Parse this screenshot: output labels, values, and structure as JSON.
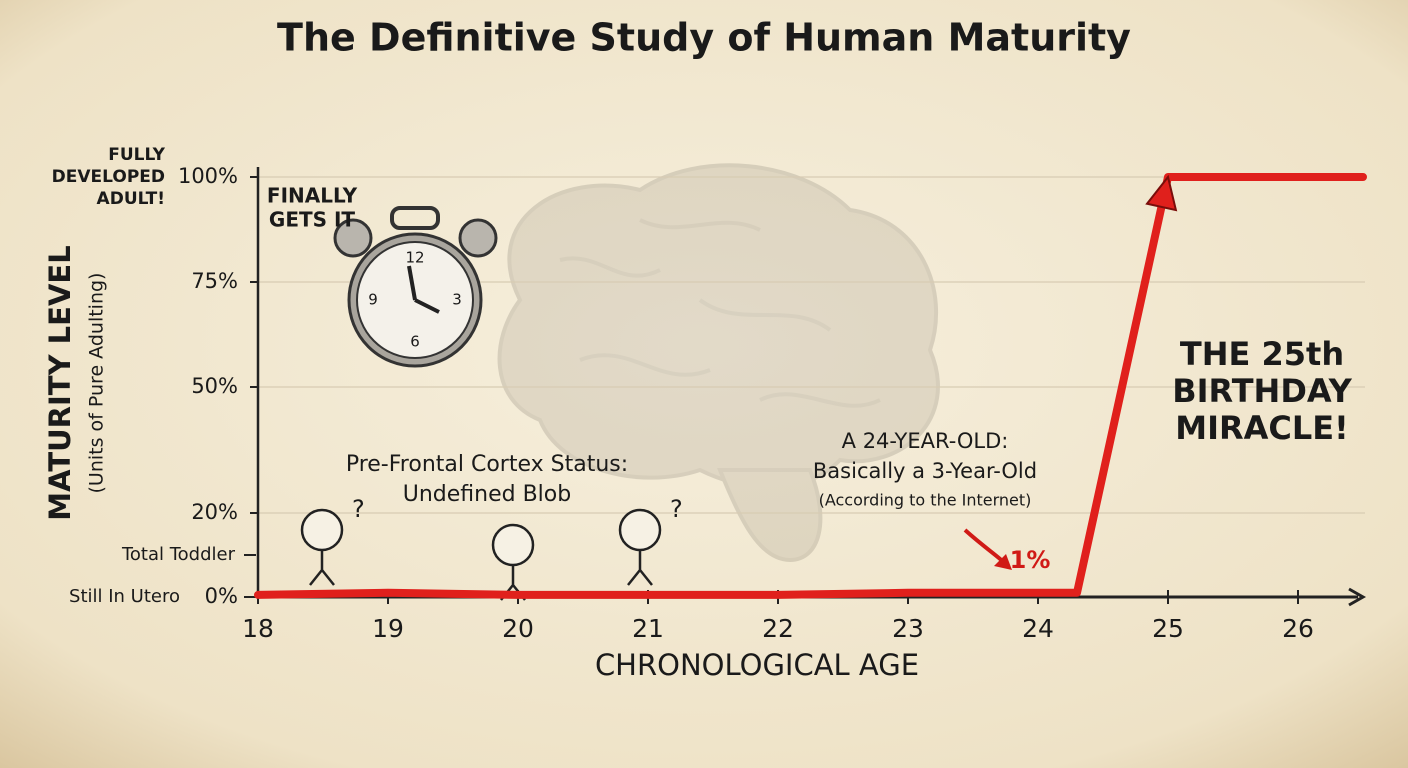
{
  "chart_data": {
    "type": "line",
    "title": "The Definitive Study of Human Maturity",
    "x_label": "CHRONOLOGICAL AGE",
    "y_label": "MATURITY LEVEL",
    "y_sublabel": "(Units of Pure Adulting)",
    "xlim": [
      18,
      26.5
    ],
    "xticks": [
      18,
      19,
      20,
      21,
      22,
      23,
      24,
      25,
      26
    ],
    "ylim": [
      0,
      100
    ],
    "yticks": [
      {
        "value": 0,
        "label": "0%"
      },
      {
        "value": 20,
        "label": "20%"
      },
      {
        "value": 50,
        "label": "50%"
      },
      {
        "value": 75,
        "label": "75%"
      },
      {
        "value": 100,
        "label": "100%"
      }
    ],
    "y_level_labels": [
      {
        "value": 100,
        "lines": [
          "FULLY",
          "DEVELOPED",
          "ADULT!"
        ]
      },
      {
        "value": 10,
        "lines": [
          "Total Toddler"
        ]
      },
      {
        "value": 0,
        "lines": [
          "Still In Utero"
        ]
      }
    ],
    "grid": true,
    "series": [
      {
        "color": "#e0201c",
        "x": [
          18,
          19,
          20,
          21,
          22,
          23,
          24,
          24.3,
          25,
          26.5
        ],
        "values": [
          0.5,
          1,
          0.5,
          0.5,
          0.5,
          1,
          1,
          1,
          100,
          100
        ]
      }
    ],
    "annotations": [
      {
        "lines": [
          "FINALLY",
          "GETS IT"
        ]
      },
      {
        "lines": [
          "Pre-Frontal Cortex Status:",
          "Undefined Blob"
        ]
      },
      {
        "lines": [
          "A 24-YEAR-OLD:",
          "Basically a 3-Year-Old",
          "(According to the Internet)"
        ]
      },
      {
        "lines": [
          "1%"
        ]
      },
      {
        "lines": [
          "THE 25th",
          "BIRTHDAY",
          "MIRACLE!"
        ]
      }
    ],
    "clock_numbers": [
      "12",
      "3",
      "6",
      "9"
    ],
    "question_mark": "?"
  }
}
